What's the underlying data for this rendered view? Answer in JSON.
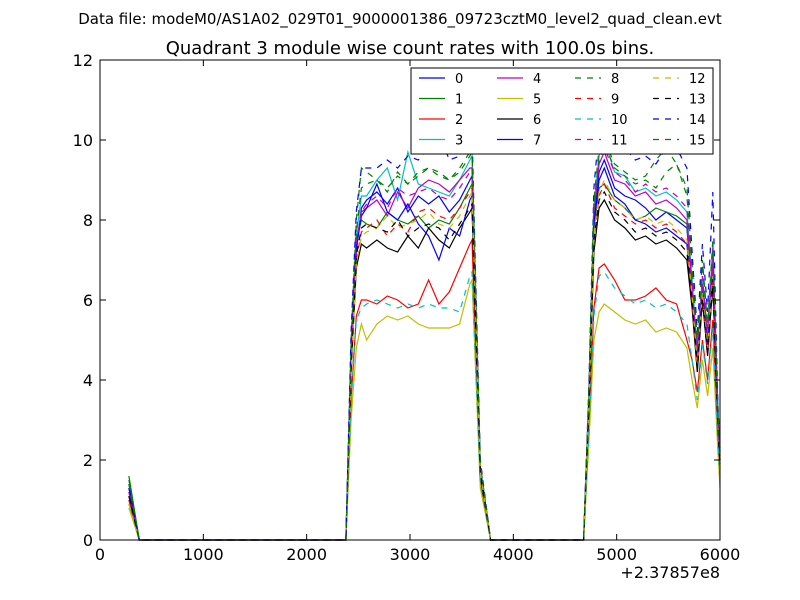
{
  "chart_data": {
    "type": "line",
    "suptitle": "Data file: modeM0/AS1A02_029T01_9000001386_09723cztM0_level2_quad_clean.evt",
    "title": "Quadrant 3 module wise count rates with 100.0s bins.",
    "xlabel": "",
    "ylabel": "",
    "x_offset_label": "+2.37857e8",
    "xlim": [
      0,
      6000
    ],
    "ylim": [
      0,
      12
    ],
    "xticks": [
      "0",
      "1000",
      "2000",
      "3000",
      "4000",
      "5000",
      "6000"
    ],
    "yticks": [
      "0",
      "2",
      "4",
      "6",
      "8",
      "10",
      "12"
    ],
    "legend_position": "top-right",
    "x": [
      280,
      380,
      480,
      580,
      680,
      780,
      880,
      980,
      1080,
      1180,
      1280,
      1380,
      1480,
      1580,
      1680,
      1780,
      1880,
      1980,
      2080,
      2180,
      2280,
      2380,
      2430,
      2480,
      2530,
      2580,
      2680,
      2780,
      2880,
      2980,
      3080,
      3180,
      3280,
      3380,
      3480,
      3580,
      3600,
      3680,
      3780,
      3880,
      3980,
      4080,
      4180,
      4280,
      4380,
      4480,
      4580,
      4680,
      4730,
      4780,
      4830,
      4880,
      4980,
      5080,
      5180,
      5280,
      5380,
      5480,
      5580,
      5680,
      5730,
      5780,
      5830,
      5880,
      5930,
      5980,
      6000
    ],
    "series": [
      {
        "name": "0",
        "color": "#0000ff",
        "dash": "solid",
        "values": [
          1.4,
          0,
          0,
          0,
          0,
          0,
          0,
          0,
          0,
          0,
          0,
          0,
          0,
          0,
          0,
          0,
          0,
          0,
          0,
          0,
          0,
          0,
          4.5,
          7.2,
          8.3,
          8.5,
          8.7,
          8.4,
          8.8,
          8.2,
          8.6,
          8.4,
          8.6,
          8.2,
          8.5,
          9.0,
          9.1,
          1.8,
          0,
          0,
          0,
          0,
          0,
          0,
          0,
          0,
          0,
          0,
          3.5,
          8.0,
          9.2,
          9.5,
          8.8,
          8.6,
          8.5,
          8.3,
          8.0,
          8.2,
          8.0,
          7.8,
          6.2,
          4.5,
          6.5,
          5.0,
          7.0,
          3.0,
          2.0
        ]
      },
      {
        "name": "1",
        "color": "#008000",
        "dash": "solid",
        "values": [
          1.6,
          0,
          0,
          0,
          0,
          0,
          0,
          0,
          0,
          0,
          0,
          0,
          0,
          0,
          0,
          0,
          0,
          0,
          0,
          0,
          0,
          0,
          4.6,
          7.5,
          8.0,
          7.9,
          7.8,
          8.2,
          8.0,
          7.9,
          8.1,
          7.8,
          8.0,
          7.9,
          8.3,
          8.8,
          8.9,
          1.7,
          0,
          0,
          0,
          0,
          0,
          0,
          0,
          0,
          0,
          0,
          3.4,
          7.8,
          8.8,
          8.9,
          8.5,
          8.3,
          8.0,
          8.1,
          8.3,
          8.2,
          8.1,
          7.9,
          6.0,
          4.2,
          6.3,
          4.9,
          6.8,
          2.9,
          2.0
        ]
      },
      {
        "name": "2",
        "color": "#ff0000",
        "dash": "solid",
        "values": [
          1.0,
          0,
          0,
          0,
          0,
          0,
          0,
          0,
          0,
          0,
          0,
          0,
          0,
          0,
          0,
          0,
          0,
          0,
          0,
          0,
          0,
          0,
          3.5,
          5.6,
          6.0,
          6.0,
          5.9,
          6.1,
          6.0,
          5.8,
          5.9,
          6.5,
          5.9,
          6.2,
          6.8,
          7.4,
          7.5,
          1.5,
          0,
          0,
          0,
          0,
          0,
          0,
          0,
          0,
          0,
          0,
          2.8,
          5.8,
          6.8,
          6.9,
          6.5,
          6.0,
          6.0,
          6.1,
          6.3,
          6.0,
          5.9,
          5.0,
          4.5,
          3.7,
          5.0,
          4.0,
          5.5,
          2.5,
          1.8
        ]
      },
      {
        "name": "3",
        "color": "#00bfbf",
        "dash": "solid",
        "values": [
          0.9,
          0,
          0,
          0,
          0,
          0,
          0,
          0,
          0,
          0,
          0,
          0,
          0,
          0,
          0,
          0,
          0,
          0,
          0,
          0,
          0,
          0,
          4.8,
          7.6,
          8.6,
          8.6,
          9.0,
          9.3,
          8.5,
          9.7,
          8.9,
          8.8,
          8.7,
          8.6,
          9.0,
          9.5,
          9.6,
          1.8,
          0,
          0,
          0,
          0,
          0,
          0,
          0,
          0,
          0,
          0,
          3.6,
          8.3,
          9.6,
          10.0,
          9.2,
          9.1,
          8.7,
          8.8,
          8.6,
          8.7,
          8.5,
          8.2,
          6.5,
          4.7,
          6.6,
          5.1,
          7.1,
          3.1,
          2.1
        ]
      },
      {
        "name": "4",
        "color": "#bf00bf",
        "dash": "solid",
        "values": [
          1.2,
          0,
          0,
          0,
          0,
          0,
          0,
          0,
          0,
          0,
          0,
          0,
          0,
          0,
          0,
          0,
          0,
          0,
          0,
          0,
          0,
          0,
          4.7,
          7.4,
          8.2,
          8.3,
          8.5,
          8.1,
          8.7,
          8.3,
          8.8,
          9.0,
          8.9,
          8.7,
          9.0,
          9.3,
          9.3,
          1.8,
          0,
          0,
          0,
          0,
          0,
          0,
          0,
          0,
          0,
          0,
          3.5,
          8.1,
          9.4,
          9.7,
          9.0,
          8.9,
          8.6,
          8.7,
          8.4,
          8.5,
          8.3,
          8.0,
          6.3,
          4.6,
          6.4,
          5.0,
          6.9,
          3.0,
          2.0
        ]
      },
      {
        "name": "5",
        "color": "#bfbf00",
        "dash": "solid",
        "values": [
          0.8,
          0,
          0,
          0,
          0,
          0,
          0,
          0,
          0,
          0,
          0,
          0,
          0,
          0,
          0,
          0,
          0,
          0,
          0,
          0,
          0,
          0,
          3.0,
          4.8,
          5.4,
          5.0,
          5.4,
          5.6,
          5.5,
          5.6,
          5.4,
          5.3,
          5.3,
          5.3,
          5.4,
          6.4,
          6.5,
          1.3,
          0,
          0,
          0,
          0,
          0,
          0,
          0,
          0,
          0,
          0,
          2.4,
          5.0,
          5.7,
          5.9,
          5.7,
          5.5,
          5.4,
          5.5,
          5.2,
          5.3,
          5.2,
          4.8,
          4.0,
          3.3,
          4.5,
          3.6,
          4.8,
          2.2,
          1.3
        ]
      },
      {
        "name": "6",
        "color": "#000000",
        "dash": "solid",
        "values": [
          1.1,
          0,
          0,
          0,
          0,
          0,
          0,
          0,
          0,
          0,
          0,
          0,
          0,
          0,
          0,
          0,
          0,
          0,
          0,
          0,
          0,
          0,
          4.2,
          6.8,
          7.4,
          7.3,
          7.5,
          7.3,
          7.2,
          7.6,
          7.3,
          7.8,
          7.5,
          7.3,
          7.8,
          8.2,
          8.3,
          1.6,
          0,
          0,
          0,
          0,
          0,
          0,
          0,
          0,
          0,
          0,
          3.2,
          7.2,
          8.3,
          8.5,
          8.0,
          7.8,
          7.5,
          7.6,
          7.4,
          7.5,
          7.3,
          7.0,
          5.8,
          4.2,
          6.0,
          4.6,
          6.4,
          2.8,
          1.9
        ]
      },
      {
        "name": "7",
        "color": "#0000ff",
        "dash": "solid",
        "values": [
          1.3,
          0,
          0,
          0,
          0,
          0,
          0,
          0,
          0,
          0,
          0,
          0,
          0,
          0,
          0,
          0,
          0,
          0,
          0,
          0,
          0,
          0,
          4.5,
          7.3,
          8.1,
          8.3,
          8.9,
          8.2,
          8.0,
          8.4,
          7.9,
          7.6,
          7.0,
          7.8,
          7.6,
          8.5,
          8.6,
          1.7,
          0,
          0,
          0,
          0,
          0,
          0,
          0,
          0,
          0,
          0,
          3.4,
          7.9,
          9.0,
          9.3,
          8.6,
          8.4,
          8.0,
          7.9,
          7.7,
          7.8,
          7.6,
          7.4,
          6.0,
          4.4,
          6.2,
          4.8,
          6.6,
          2.9,
          2.0
        ]
      },
      {
        "name": "8",
        "color": "#008000",
        "dash": "dashed",
        "values": [
          1.5,
          0,
          0,
          0,
          0,
          0,
          0,
          0,
          0,
          0,
          0,
          0,
          0,
          0,
          0,
          0,
          0,
          0,
          0,
          0,
          0,
          0,
          5.0,
          8.0,
          9.3,
          9.2,
          9.0,
          8.7,
          9.2,
          8.9,
          9.1,
          9.3,
          9.2,
          9.0,
          9.3,
          9.7,
          9.8,
          1.9,
          0,
          0,
          0,
          0,
          0,
          0,
          0,
          0,
          0,
          0,
          3.7,
          8.5,
          9.8,
          10.0,
          9.4,
          9.2,
          9.0,
          9.1,
          9.5,
          9.8,
          9.4,
          8.8,
          6.9,
          5.0,
          7.0,
          5.4,
          7.5,
          3.3,
          2.2
        ]
      },
      {
        "name": "9",
        "color": "#ff0000",
        "dash": "dashed",
        "values": [
          1.0,
          0,
          0,
          0,
          0,
          0,
          0,
          0,
          0,
          0,
          0,
          0,
          0,
          0,
          0,
          0,
          0,
          0,
          0,
          0,
          0,
          0,
          4.3,
          7.0,
          7.7,
          7.8,
          8.0,
          7.6,
          7.9,
          7.7,
          8.2,
          8.3,
          8.1,
          8.0,
          8.3,
          8.7,
          8.8,
          1.7,
          0,
          0,
          0,
          0,
          0,
          0,
          0,
          0,
          0,
          0,
          3.3,
          7.5,
          8.6,
          8.9,
          8.3,
          8.1,
          7.9,
          8.0,
          7.8,
          7.9,
          7.7,
          7.4,
          6.0,
          4.3,
          6.1,
          4.7,
          6.5,
          2.9,
          2.0
        ]
      },
      {
        "name": "10",
        "color": "#00bfbf",
        "dash": "dashed",
        "values": [
          0.9,
          0,
          0,
          0,
          0,
          0,
          0,
          0,
          0,
          0,
          0,
          0,
          0,
          0,
          0,
          0,
          0,
          0,
          0,
          0,
          0,
          0,
          3.4,
          5.5,
          5.8,
          5.9,
          6.0,
          5.9,
          5.8,
          5.9,
          5.8,
          5.9,
          5.8,
          5.8,
          5.7,
          6.6,
          6.7,
          1.4,
          0,
          0,
          0,
          0,
          0,
          0,
          0,
          0,
          0,
          0,
          2.6,
          5.6,
          6.6,
          6.7,
          6.3,
          6.1,
          5.9,
          6.0,
          5.8,
          5.9,
          5.7,
          5.4,
          4.5,
          3.5,
          4.9,
          3.9,
          5.3,
          2.4,
          1.6
        ]
      },
      {
        "name": "11",
        "color": "#bf00bf",
        "dash": "dashed",
        "values": [
          1.2,
          0,
          0,
          0,
          0,
          0,
          0,
          0,
          0,
          0,
          0,
          0,
          0,
          0,
          0,
          0,
          0,
          0,
          0,
          0,
          0,
          0,
          4.6,
          7.4,
          8.2,
          8.4,
          8.6,
          8.3,
          8.8,
          8.6,
          8.7,
          8.8,
          8.6,
          8.5,
          8.8,
          9.2,
          9.3,
          1.8,
          0,
          0,
          0,
          0,
          0,
          0,
          0,
          0,
          0,
          0,
          3.5,
          8.2,
          9.5,
          9.8,
          9.2,
          9.0,
          8.7,
          8.9,
          8.7,
          8.8,
          8.6,
          8.3,
          6.5,
          4.7,
          6.6,
          5.1,
          7.3,
          3.1,
          2.1
        ]
      },
      {
        "name": "12",
        "color": "#bfbf00",
        "dash": "dashed",
        "values": [
          0.9,
          0,
          0,
          0,
          0,
          0,
          0,
          0,
          0,
          0,
          0,
          0,
          0,
          0,
          0,
          0,
          0,
          0,
          0,
          0,
          0,
          0,
          4.2,
          6.9,
          7.6,
          7.7,
          7.8,
          8.1,
          7.8,
          7.9,
          8.0,
          8.2,
          7.9,
          7.8,
          8.1,
          8.6,
          8.7,
          1.7,
          0,
          0,
          0,
          0,
          0,
          0,
          0,
          0,
          0,
          0,
          3.3,
          7.6,
          8.7,
          9.0,
          8.5,
          8.3,
          8.0,
          8.1,
          7.9,
          8.0,
          7.8,
          7.5,
          6.1,
          4.4,
          6.2,
          4.8,
          6.6,
          2.9,
          2.0
        ]
      },
      {
        "name": "13",
        "color": "#000000",
        "dash": "dashed",
        "values": [
          1.1,
          0,
          0,
          0,
          0,
          0,
          0,
          0,
          0,
          0,
          0,
          0,
          0,
          0,
          0,
          0,
          0,
          0,
          0,
          0,
          0,
          0,
          4.4,
          7.1,
          7.8,
          7.9,
          7.8,
          7.7,
          8.0,
          7.6,
          7.8,
          7.9,
          7.8,
          7.5,
          7.9,
          8.3,
          8.4,
          1.7,
          0,
          0,
          0,
          0,
          0,
          0,
          0,
          0,
          0,
          0,
          3.3,
          7.5,
          8.5,
          8.7,
          8.2,
          8.0,
          7.7,
          7.8,
          7.6,
          7.7,
          7.5,
          7.2,
          5.9,
          4.3,
          6.0,
          4.6,
          6.4,
          2.8,
          1.9
        ]
      },
      {
        "name": "14",
        "color": "#0000ff",
        "dash": "dashed",
        "values": [
          1.3,
          0,
          0,
          0,
          0,
          0,
          0,
          0,
          0,
          0,
          0,
          0,
          0,
          0,
          0,
          0,
          0,
          0,
          0,
          0,
          0,
          0,
          5.2,
          8.2,
          9.3,
          9.3,
          9.3,
          9.5,
          9.3,
          9.6,
          9.5,
          9.8,
          10.2,
          9.5,
          9.6,
          10.1,
          10.2,
          2.0,
          0,
          0,
          0,
          0,
          0,
          0,
          0,
          0,
          0,
          0,
          3.8,
          8.8,
          10.3,
          10.8,
          10.0,
          9.8,
          9.5,
          9.6,
          9.4,
          9.8,
          9.8,
          9.3,
          7.2,
          5.2,
          7.4,
          5.7,
          8.7,
          3.4,
          2.3
        ]
      },
      {
        "name": "15",
        "color": "#008000",
        "dash": "dashed",
        "values": [
          1.4,
          0,
          0,
          0,
          0,
          0,
          0,
          0,
          0,
          0,
          0,
          0,
          0,
          0,
          0,
          0,
          0,
          0,
          0,
          0,
          0,
          0,
          4.8,
          7.7,
          8.8,
          8.9,
          9.0,
          8.8,
          9.1,
          8.9,
          9.2,
          9.3,
          9.1,
          9.0,
          9.2,
          9.6,
          9.7,
          1.9,
          0,
          0,
          0,
          0,
          0,
          0,
          0,
          0,
          0,
          0,
          3.6,
          8.4,
          9.6,
          9.9,
          9.3,
          9.1,
          8.9,
          9.0,
          8.8,
          9.2,
          9.4,
          8.6,
          6.8,
          4.9,
          6.9,
          5.3,
          7.3,
          3.2,
          2.1
        ]
      }
    ]
  }
}
